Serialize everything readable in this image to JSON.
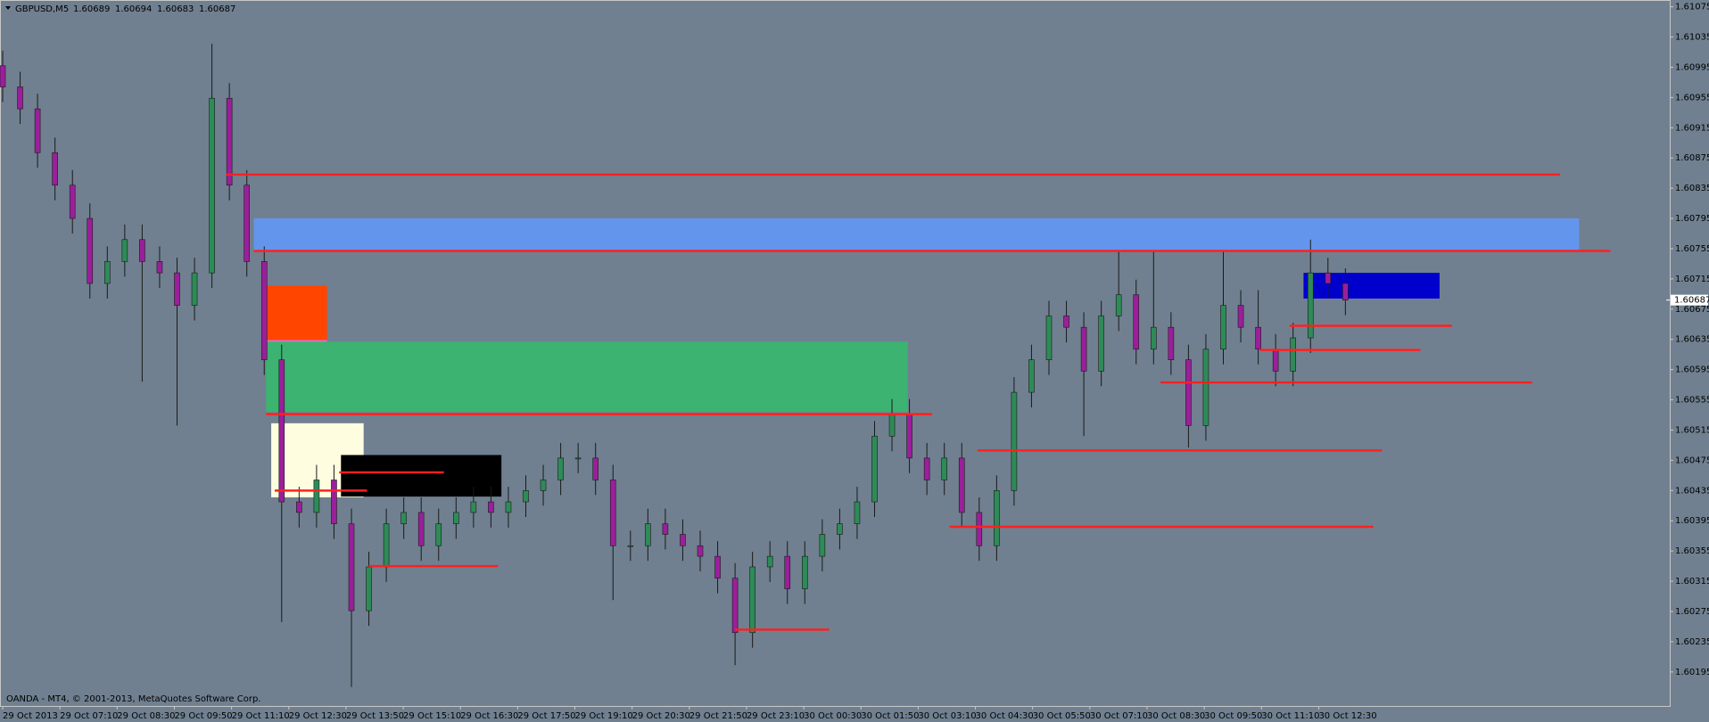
{
  "chart_data": {
    "type": "candlestick",
    "title": "GBPUSD,M5",
    "quote": [
      1.60689,
      1.60694,
      1.60683,
      1.60687
    ],
    "footer": "OANDA - MT4, © 2001-2013, MetaQuotes Software Corp.",
    "current_price": 1.60687,
    "up_color": "#2e8b57",
    "down_color": "#9b1f9b",
    "wick_color": "#1a1a1a",
    "x_labels": [
      "29 Oct 2013",
      "29 Oct 07:10",
      "29 Oct 08:30",
      "29 Oct 09:50",
      "29 Oct 11:10",
      "29 Oct 12:30",
      "29 Oct 13:50",
      "29 Oct 15:10",
      "29 Oct 16:30",
      "29 Oct 17:50",
      "29 Oct 19:10",
      "29 Oct 20:30",
      "29 Oct 21:50",
      "29 Oct 23:10",
      "30 Oct 00:30",
      "30 Oct 01:50",
      "30 Oct 03:10",
      "30 Oct 04:30",
      "30 Oct 05:50",
      "30 Oct 07:10",
      "30 Oct 08:30",
      "30 Oct 09:50",
      "30 Oct 11:10",
      "30 Oct 12:30"
    ],
    "ylim": [
      1.6015,
      1.61084
    ],
    "yticks": [
      1.61075,
      1.61035,
      1.60995,
      1.60955,
      1.60915,
      1.60875,
      1.60835,
      1.60795,
      1.60755,
      1.60715,
      1.60675,
      1.60635,
      1.60595,
      1.60555,
      1.60515,
      1.60475,
      1.60435,
      1.60395,
      1.60355,
      1.60315,
      1.60275,
      1.60235,
      1.60195
    ],
    "open": [
      1.60997,
      1.60969,
      1.6094,
      1.60882,
      1.60839,
      1.60795,
      1.60709,
      1.60738,
      1.60767,
      1.60738,
      1.60723,
      1.6068,
      1.60723,
      1.60954,
      1.60839,
      1.60738,
      1.60608,
      1.6042,
      1.60406,
      1.60449,
      1.60391,
      1.60276,
      1.60334,
      1.60391,
      1.60406,
      1.60362,
      1.60391,
      1.60406,
      1.6042,
      1.60406,
      1.6042,
      1.60435,
      1.60449,
      1.60478,
      1.60478,
      1.60449,
      1.60362,
      1.60362,
      1.60391,
      1.60377,
      1.60362,
      1.60348,
      1.60319,
      1.60247,
      1.60334,
      1.60348,
      1.60305,
      1.60348,
      1.60377,
      1.60391,
      1.6042,
      1.60507,
      1.60536,
      1.60478,
      1.60449,
      1.60478,
      1.60406,
      1.60362,
      1.60435,
      1.60565,
      1.60608,
      1.60666,
      1.60651,
      1.60593,
      1.60666,
      1.60694,
      1.60622,
      1.60651,
      1.60608,
      1.60521,
      1.60622,
      1.6068,
      1.60651,
      1.60622,
      1.60593,
      1.60637,
      1.60723,
      1.60709
    ],
    "high": [
      1.61017,
      1.60989,
      1.6096,
      1.60902,
      1.60859,
      1.60815,
      1.60758,
      1.60787,
      1.60787,
      1.60758,
      1.60743,
      1.60743,
      1.61026,
      1.60974,
      1.60859,
      1.60758,
      1.60628,
      1.6044,
      1.60469,
      1.60469,
      1.60411,
      1.60354,
      1.60411,
      1.60426,
      1.60426,
      1.60411,
      1.60426,
      1.6044,
      1.6044,
      1.6044,
      1.60455,
      1.60469,
      1.60498,
      1.60498,
      1.60498,
      1.60469,
      1.60382,
      1.60411,
      1.60411,
      1.60397,
      1.60382,
      1.60368,
      1.60339,
      1.60354,
      1.60368,
      1.60368,
      1.60368,
      1.60397,
      1.60411,
      1.6044,
      1.60527,
      1.60556,
      1.60556,
      1.60498,
      1.60498,
      1.60498,
      1.60426,
      1.60455,
      1.60585,
      1.60628,
      1.60686,
      1.60686,
      1.60671,
      1.60686,
      1.60752,
      1.60714,
      1.60752,
      1.60671,
      1.60628,
      1.60642,
      1.60752,
      1.607,
      1.607,
      1.60642,
      1.60657,
      1.60767,
      1.60743,
      1.60729
    ],
    "low": [
      1.60949,
      1.6092,
      1.60862,
      1.60819,
      1.60775,
      1.60689,
      1.60689,
      1.60718,
      1.60579,
      1.60703,
      1.60521,
      1.6066,
      1.60703,
      1.60819,
      1.60718,
      1.60588,
      1.60261,
      1.60386,
      1.60386,
      1.60371,
      1.60175,
      1.60256,
      1.60314,
      1.60371,
      1.60342,
      1.60342,
      1.60371,
      1.60386,
      1.60386,
      1.60386,
      1.604,
      1.60415,
      1.60429,
      1.60458,
      1.60429,
      1.6029,
      1.60342,
      1.60342,
      1.60357,
      1.60342,
      1.60328,
      1.60299,
      1.60204,
      1.60227,
      1.60314,
      1.60285,
      1.60285,
      1.60328,
      1.60357,
      1.60371,
      1.604,
      1.60487,
      1.60458,
      1.60429,
      1.60429,
      1.60386,
      1.60342,
      1.60342,
      1.60415,
      1.60545,
      1.60588,
      1.60631,
      1.60507,
      1.60573,
      1.60646,
      1.60602,
      1.60602,
      1.60588,
      1.60492,
      1.60501,
      1.60602,
      1.60631,
      1.60602,
      1.60573,
      1.60573,
      1.60617,
      1.60689,
      1.60667
    ],
    "close": [
      1.60969,
      1.6094,
      1.60882,
      1.60839,
      1.60795,
      1.60709,
      1.60738,
      1.60767,
      1.60738,
      1.60723,
      1.6068,
      1.60723,
      1.60954,
      1.60839,
      1.60738,
      1.60608,
      1.6042,
      1.60406,
      1.60449,
      1.60391,
      1.60276,
      1.60334,
      1.60391,
      1.60406,
      1.60362,
      1.60391,
      1.60406,
      1.6042,
      1.60406,
      1.6042,
      1.60435,
      1.60449,
      1.60478,
      1.60478,
      1.60449,
      1.60362,
      1.60362,
      1.60391,
      1.60377,
      1.60362,
      1.60348,
      1.60319,
      1.60247,
      1.60334,
      1.60348,
      1.60305,
      1.60348,
      1.60377,
      1.60391,
      1.6042,
      1.60507,
      1.60536,
      1.60478,
      1.60449,
      1.60478,
      1.60406,
      1.60362,
      1.60435,
      1.60565,
      1.60608,
      1.60666,
      1.60651,
      1.60593,
      1.60666,
      1.60694,
      1.60622,
      1.60651,
      1.60608,
      1.60521,
      1.60622,
      1.6068,
      1.60651,
      1.60622,
      1.60593,
      1.60637,
      1.60723,
      1.60709,
      1.60687
    ],
    "zones": [
      {
        "top": 1.60795,
        "bottom": 1.60751,
        "from": 14.4,
        "to": 90.4,
        "color": "#6495ed"
      },
      {
        "top": 1.60706,
        "bottom": 1.60634,
        "from": 14.9,
        "to": 18.6,
        "color": "#ff4500"
      },
      {
        "top": 1.60634,
        "bottom": 1.60625,
        "from": 15.1,
        "to": 18.6,
        "color": "#da70d6"
      },
      {
        "top": 1.60632,
        "bottom": 1.60539,
        "from": 15.1,
        "to": 51.9,
        "color": "#3cb371"
      },
      {
        "top": 1.60524,
        "bottom": 1.60426,
        "from": 15.4,
        "to": 20.7,
        "color": "#fffde0"
      },
      {
        "top": 1.60482,
        "bottom": 1.60427,
        "from": 19.4,
        "to": 28.6,
        "color": "#000000"
      },
      {
        "top": 1.60723,
        "bottom": 1.60689,
        "from": 74.6,
        "to": 82.4,
        "color": "#0000cd"
      }
    ],
    "level_color": "#ff2020",
    "levels": [
      {
        "price": 1.60853,
        "from": 12.8,
        "to": 89.3
      },
      {
        "price": 1.60752,
        "from": 14.4,
        "to": 92.2
      },
      {
        "price": 1.60536,
        "from": 15.1,
        "to": 53.3
      },
      {
        "price": 1.60488,
        "from": 55.9,
        "to": 79.1
      },
      {
        "price": 1.60387,
        "from": 54.3,
        "to": 78.6
      },
      {
        "price": 1.60335,
        "from": 21,
        "to": 28.4
      },
      {
        "price": 1.60251,
        "from": 42,
        "to": 47.4
      },
      {
        "price": 1.60459,
        "from": 19.3,
        "to": 25.3
      },
      {
        "price": 1.60435,
        "from": 15.6,
        "to": 20.9
      },
      {
        "price": 1.60653,
        "from": 73.8,
        "to": 83.1
      },
      {
        "price": 1.60621,
        "from": 72.1,
        "to": 81.3
      },
      {
        "price": 1.60578,
        "from": 66.4,
        "to": 87.7
      }
    ]
  }
}
